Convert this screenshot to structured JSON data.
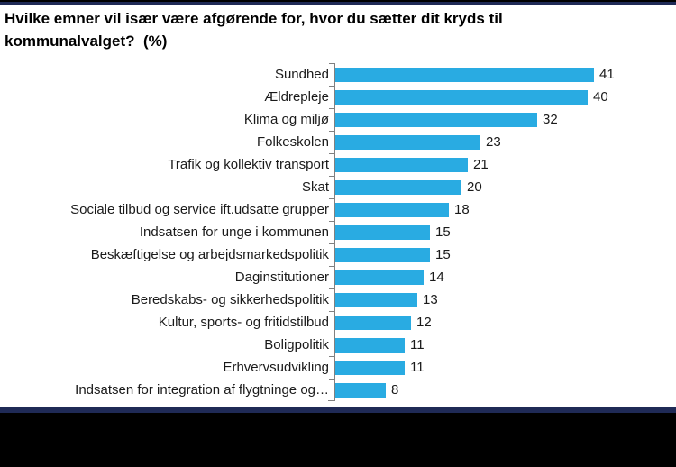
{
  "page": {
    "title_line1": "Hvilke emner vil især være afgørende for, hvor du sætter dit kryds til",
    "title_line2": "kommunalvalget?  (%)"
  },
  "chart_data": {
    "type": "bar",
    "orientation": "horizontal",
    "title": "Hvilke emner vil især være afgørende for, hvor du sætter dit kryds til kommunalvalget? (%)",
    "categories": [
      "Sundhed",
      "Ældrepleje",
      "Klima og miljø",
      "Folkeskolen",
      "Trafik og kollektiv transport",
      "Skat",
      "Sociale tilbud og service ift.udsatte grupper",
      "Indsatsen for unge i kommunen",
      "Beskæftigelse og arbejdsmarkedspolitik",
      "Daginstitutioner",
      "Beredskabs- og sikkerhedspolitik",
      "Kultur, sports- og fritidstilbud",
      "Boligpolitik",
      "Erhvervsudvikling",
      "Indsatsen for integration af flygtninge og…"
    ],
    "values": [
      41,
      40,
      32,
      23,
      21,
      20,
      18,
      15,
      15,
      14,
      13,
      12,
      11,
      11,
      8
    ],
    "xlabel": "",
    "ylabel": "",
    "xlim": [
      0,
      45
    ],
    "grid": false,
    "legend": false,
    "value_labels_position": "outside-end",
    "bar_color": "#29ABE2",
    "axis_color": "#808080",
    "text_color": "#1a1a1a"
  },
  "colors": {
    "border_navy": "#1F2A56",
    "footer_black": "#000000",
    "background": "#FFFFFF"
  }
}
